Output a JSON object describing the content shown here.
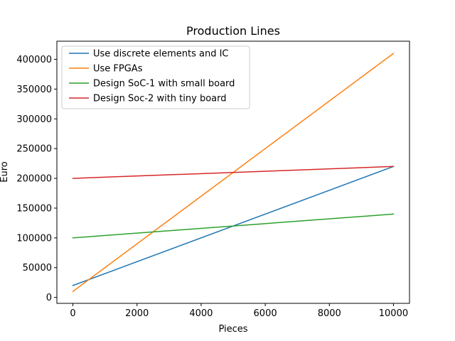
{
  "chart_data": {
    "type": "line",
    "title": "Production Lines",
    "xlabel": "Pieces",
    "ylabel": "Euro",
    "xlim": [
      -500,
      10500
    ],
    "ylim": [
      -10000,
      430500
    ],
    "x_ticks": [
      0,
      2000,
      4000,
      6000,
      8000,
      10000
    ],
    "x_tick_labels": [
      "0",
      "2000",
      "4000",
      "6000",
      "8000",
      "10000"
    ],
    "y_ticks": [
      0,
      50000,
      100000,
      150000,
      200000,
      250000,
      300000,
      350000,
      400000
    ],
    "y_tick_labels": [
      "0",
      "50000",
      "100000",
      "150000",
      "200000",
      "250000",
      "300000",
      "350000",
      "400000"
    ],
    "grid": false,
    "legend_position": "upper-left",
    "x": [
      0,
      10000
    ],
    "series": [
      {
        "name": "Use discrete elements and IC",
        "color": "#1f77b4",
        "values": [
          20000,
          220000
        ]
      },
      {
        "name": "Use FPGAs",
        "color": "#ff7f0e",
        "values": [
          10000,
          410000
        ]
      },
      {
        "name": "Design SoC-1 with small board",
        "color": "#2ca02c",
        "values": [
          100000,
          140000
        ]
      },
      {
        "name": "Design Soc-2 with tiny board",
        "color": "#d62728",
        "values": [
          200000,
          220000
        ]
      }
    ]
  }
}
